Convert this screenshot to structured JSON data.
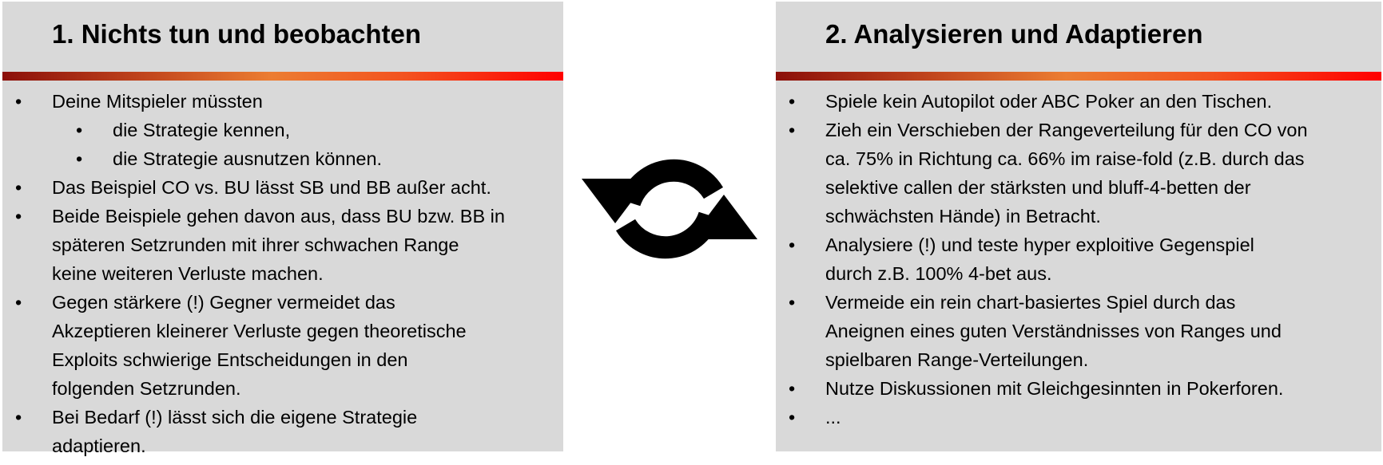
{
  "left": {
    "title": "1. Nichts tun und beobachten",
    "items": [
      {
        "level": 1,
        "lines": [
          "Deine Mitspieler müssten"
        ]
      },
      {
        "level": 2,
        "lines": [
          "die Strategie kennen,"
        ]
      },
      {
        "level": 2,
        "lines": [
          "die Strategie ausnutzen können."
        ]
      },
      {
        "level": 1,
        "lines": [
          "Das Beispiel CO vs. BU lässt SB und BB außer acht."
        ]
      },
      {
        "level": 1,
        "lines": [
          "Beide Beispiele gehen davon aus, dass BU bzw. BB in",
          "späteren Setzrunden mit ihrer schwachen Range",
          "keine weiteren Verluste machen."
        ]
      },
      {
        "level": 1,
        "lines": [
          "Gegen stärkere (!) Gegner vermeidet das",
          "Akzeptieren kleinerer Verluste gegen theoretische",
          "Exploits schwierige Entscheidungen in den",
          "folgenden Setzrunden."
        ]
      },
      {
        "level": 1,
        "lines": [
          "Bei Bedarf (!) lässt sich die eigene Strategie",
          "adaptieren."
        ]
      }
    ]
  },
  "right": {
    "title": "2. Analysieren und Adaptieren",
    "items": [
      {
        "level": 1,
        "lines": [
          "Spiele kein Autopilot oder ABC Poker an den Tischen."
        ]
      },
      {
        "level": 1,
        "lines": [
          "Zieh ein Verschieben der Rangeverteilung für den CO von",
          "ca. 75% in Richtung ca. 66% im raise-fold (z.B. durch das",
          "selektive callen der stärksten und bluff-4-betten der",
          "schwächsten Hände) in Betracht."
        ]
      },
      {
        "level": 1,
        "lines": [
          "Analysiere (!) und teste hyper exploitive Gegenspiel",
          "durch z.B. 100% 4-bet aus."
        ]
      },
      {
        "level": 1,
        "lines": [
          "Vermeide ein rein chart-basiertes Spiel durch das",
          "Aneignen eines guten Verständnisses von Ranges und",
          "spielbaren Range-Verteilungen."
        ]
      },
      {
        "level": 1,
        "lines": [
          "Nutze Diskussionen mit Gleichgesinnten in Pokerforen."
        ]
      },
      {
        "level": 1,
        "lines": [
          "..."
        ]
      }
    ]
  },
  "bullet_char": "•",
  "icon": "cycle-arrows-icon",
  "colors": {
    "panel": "#d9d9d9",
    "bar_start": "#8b0f0a",
    "bar_mid": "#ec7d32",
    "bar_end": "#ff0000"
  }
}
